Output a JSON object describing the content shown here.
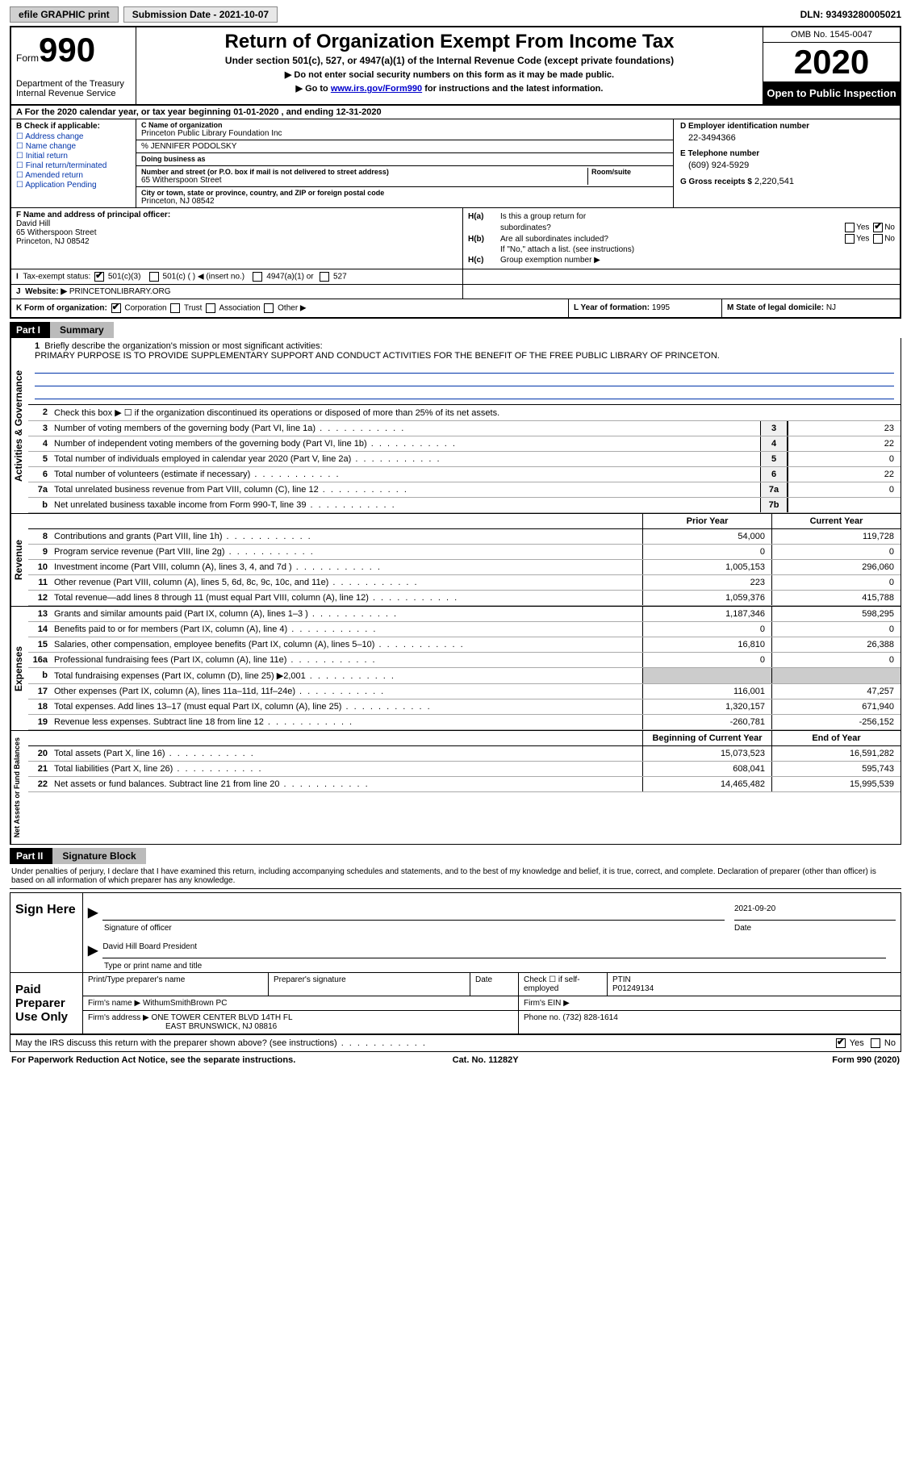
{
  "top": {
    "efile": "efile GRAPHIC print",
    "submission": "Submission Date - 2021-10-07",
    "dln": "DLN: 93493280005021"
  },
  "header": {
    "form_label": "Form",
    "form_num": "990",
    "dept": "Department of the Treasury\nInternal Revenue Service",
    "title": "Return of Organization Exempt From Income Tax",
    "subtitle": "Under section 501(c), 527, or 4947(a)(1) of the Internal Revenue Code (except private foundations)",
    "note1": "▶ Do not enter social security numbers on this form as it may be made public.",
    "note2_pre": "▶ Go to ",
    "note2_link": "www.irs.gov/Form990",
    "note2_post": " for instructions and the latest information.",
    "omb": "OMB No. 1545-0047",
    "year": "2020",
    "inspect": "Open to Public Inspection"
  },
  "rowA": "A For the 2020 calendar year, or tax year beginning 01-01-2020   , and ending 12-31-2020",
  "B": {
    "label": "B Check if applicable:",
    "opts": [
      "☐ Address change",
      "☐ Name change",
      "☐ Initial return",
      "☐ Final return/terminated",
      "☐ Amended return",
      "☐ Application Pending"
    ]
  },
  "C": {
    "name_lbl": "C Name of organization",
    "name": "Princeton Public Library Foundation Inc",
    "care_of": "% JENNIFER PODOLSKY",
    "dba_lbl": "Doing business as",
    "addr_lbl": "Number and street (or P.O. box if mail is not delivered to street address)",
    "addr": "65 Witherspoon Street",
    "room_lbl": "Room/suite",
    "city_lbl": "City or town, state or province, country, and ZIP or foreign postal code",
    "city": "Princeton, NJ  08542"
  },
  "D": {
    "ein_lbl": "D Employer identification number",
    "ein": "22-3494366",
    "phone_lbl": "E Telephone number",
    "phone": "(609) 924-5929",
    "gross_lbl": "G Gross receipts $",
    "gross": "2,220,541"
  },
  "F": {
    "lbl": "F Name and address of principal officer:",
    "name": "David Hill",
    "addr1": "65 Witherspoon Street",
    "addr2": "Princeton, NJ  08542"
  },
  "H": {
    "a_lbl": "Is this a group return for",
    "a_lbl2": "subordinates?",
    "a_no": true,
    "b_lbl": "Are all subordinates included?",
    "b_note": "If \"No,\" attach a list. (see instructions)",
    "c_lbl": "Group exemption number ▶"
  },
  "I": {
    "lbl": "Tax-exempt status:",
    "c3": "501(c)(3)",
    "c": "501(c) (  ) ◀ (insert no.)",
    "a1": "4947(a)(1) or",
    "527": "527"
  },
  "J": {
    "lbl": "Website: ▶",
    "val": "PRINCETONLIBRARY.ORG"
  },
  "K": {
    "lbl": "K Form of organization:",
    "corp": "Corporation",
    "trust": "Trust",
    "assoc": "Association",
    "other": "Other ▶"
  },
  "L": {
    "lbl": "L Year of formation:",
    "val": "1995"
  },
  "M": {
    "lbl": "M State of legal domicile:",
    "val": "NJ"
  },
  "part1": {
    "num": "Part I",
    "title": "Summary"
  },
  "summary": {
    "brief_lbl": "Briefly describe the organization's mission or most significant activities:",
    "brief": "PRIMARY PURPOSE IS TO PROVIDE SUPPLEMENTARY SUPPORT AND CONDUCT ACTIVITIES FOR THE BENEFIT OF THE FREE PUBLIC LIBRARY OF PRINCETON.",
    "l2": "Check this box ▶ ☐  if the organization discontinued its operations or disposed of more than 25% of its net assets.",
    "lines": [
      {
        "n": "3",
        "d": "Number of voting members of the governing body (Part VI, line 1a)",
        "b": "3",
        "v": "23"
      },
      {
        "n": "4",
        "d": "Number of independent voting members of the governing body (Part VI, line 1b)",
        "b": "4",
        "v": "22"
      },
      {
        "n": "5",
        "d": "Total number of individuals employed in calendar year 2020 (Part V, line 2a)",
        "b": "5",
        "v": "0"
      },
      {
        "n": "6",
        "d": "Total number of volunteers (estimate if necessary)",
        "b": "6",
        "v": "22"
      },
      {
        "n": "7a",
        "d": "Total unrelated business revenue from Part VIII, column (C), line 12",
        "b": "7a",
        "v": "0"
      },
      {
        "n": "b",
        "d": "Net unrelated business taxable income from Form 990-T, line 39",
        "b": "7b",
        "v": ""
      }
    ],
    "col_prior": "Prior Year",
    "col_curr": "Current Year",
    "rev": [
      {
        "n": "8",
        "d": "Contributions and grants (Part VIII, line 1h)",
        "p": "54,000",
        "c": "119,728"
      },
      {
        "n": "9",
        "d": "Program service revenue (Part VIII, line 2g)",
        "p": "0",
        "c": "0"
      },
      {
        "n": "10",
        "d": "Investment income (Part VIII, column (A), lines 3, 4, and 7d )",
        "p": "1,005,153",
        "c": "296,060"
      },
      {
        "n": "11",
        "d": "Other revenue (Part VIII, column (A), lines 5, 6d, 8c, 9c, 10c, and 11e)",
        "p": "223",
        "c": "0"
      },
      {
        "n": "12",
        "d": "Total revenue—add lines 8 through 11 (must equal Part VIII, column (A), line 12)",
        "p": "1,059,376",
        "c": "415,788"
      }
    ],
    "exp": [
      {
        "n": "13",
        "d": "Grants and similar amounts paid (Part IX, column (A), lines 1–3 )",
        "p": "1,187,346",
        "c": "598,295"
      },
      {
        "n": "14",
        "d": "Benefits paid to or for members (Part IX, column (A), line 4)",
        "p": "0",
        "c": "0"
      },
      {
        "n": "15",
        "d": "Salaries, other compensation, employee benefits (Part IX, column (A), lines 5–10)",
        "p": "16,810",
        "c": "26,388"
      },
      {
        "n": "16a",
        "d": "Professional fundraising fees (Part IX, column (A), line 11e)",
        "p": "0",
        "c": "0"
      },
      {
        "n": "b",
        "d": "Total fundraising expenses (Part IX, column (D), line 25) ▶2,001",
        "p": "",
        "c": "",
        "shade": true
      },
      {
        "n": "17",
        "d": "Other expenses (Part IX, column (A), lines 11a–11d, 11f–24e)",
        "p": "116,001",
        "c": "47,257"
      },
      {
        "n": "18",
        "d": "Total expenses. Add lines 13–17 (must equal Part IX, column (A), line 25)",
        "p": "1,320,157",
        "c": "671,940"
      },
      {
        "n": "19",
        "d": "Revenue less expenses. Subtract line 18 from line 12",
        "p": "-260,781",
        "c": "-256,152"
      }
    ],
    "col_begin": "Beginning of Current Year",
    "col_end": "End of Year",
    "net": [
      {
        "n": "20",
        "d": "Total assets (Part X, line 16)",
        "p": "15,073,523",
        "c": "16,591,282"
      },
      {
        "n": "21",
        "d": "Total liabilities (Part X, line 26)",
        "p": "608,041",
        "c": "595,743"
      },
      {
        "n": "22",
        "d": "Net assets or fund balances. Subtract line 21 from line 20",
        "p": "14,465,482",
        "c": "15,995,539"
      }
    ]
  },
  "side": {
    "gov": "Activities & Governance",
    "rev": "Revenue",
    "exp": "Expenses",
    "net": "Net Assets or\nFund Balances"
  },
  "part2": {
    "num": "Part II",
    "title": "Signature Block"
  },
  "penalty": "Under penalties of perjury, I declare that I have examined this return, including accompanying schedules and statements, and to the best of my knowledge and belief, it is true, correct, and complete. Declaration of preparer (other than officer) is based on all information of which preparer has any knowledge.",
  "sign": {
    "lbl": "Sign Here",
    "sig_lbl": "Signature of officer",
    "date": "2021-09-20",
    "date_lbl": "Date",
    "name": "David Hill  Board President",
    "name_lbl": "Type or print name and title"
  },
  "prep": {
    "lbl": "Paid Preparer Use Only",
    "h1": "Print/Type preparer's name",
    "h2": "Preparer's signature",
    "h3": "Date",
    "h4": "Check ☐  if self-employed",
    "h5": "PTIN",
    "ptin": "P01249134",
    "firm_lbl": "Firm's name    ▶",
    "firm": "WithumSmithBrown PC",
    "ein_lbl": "Firm's EIN ▶",
    "addr_lbl": "Firm's address ▶",
    "addr1": "ONE TOWER CENTER BLVD 14TH FL",
    "addr2": "EAST BRUNSWICK, NJ  08816",
    "phone_lbl": "Phone no.",
    "phone": "(732) 828-1614"
  },
  "discuss": "May the IRS discuss this return with the preparer shown above? (see instructions)",
  "foot": {
    "l": "For Paperwork Reduction Act Notice, see the separate instructions.",
    "m": "Cat. No. 11282Y",
    "r": "Form 990 (2020)"
  }
}
